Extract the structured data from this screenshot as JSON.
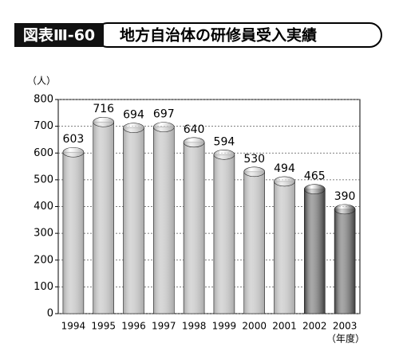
{
  "chart_data": {
    "type": "bar",
    "figure_label": "図表Ⅲ-60",
    "title": "地方自治体の研修員受入実績",
    "y_unit": "（人）",
    "x_unit": "（年度）",
    "categories": [
      "1994",
      "1995",
      "1996",
      "1997",
      "1998",
      "1999",
      "2000",
      "2001",
      "2002",
      "2003"
    ],
    "values": [
      603,
      716,
      694,
      697,
      640,
      594,
      530,
      494,
      465,
      390
    ],
    "colors": [
      "#a8a8a8",
      "#a8a8a8",
      "#a8a8a8",
      "#a8a8a8",
      "#a8a8a8",
      "#a8a8a8",
      "#a8a8a8",
      "#a8a8a8",
      "#3c3c3c",
      "#3c3c3c"
    ],
    "ylim": [
      0,
      800
    ],
    "yticks": [
      0,
      100,
      200,
      300,
      400,
      500,
      600,
      700,
      800
    ],
    "grid": true
  }
}
